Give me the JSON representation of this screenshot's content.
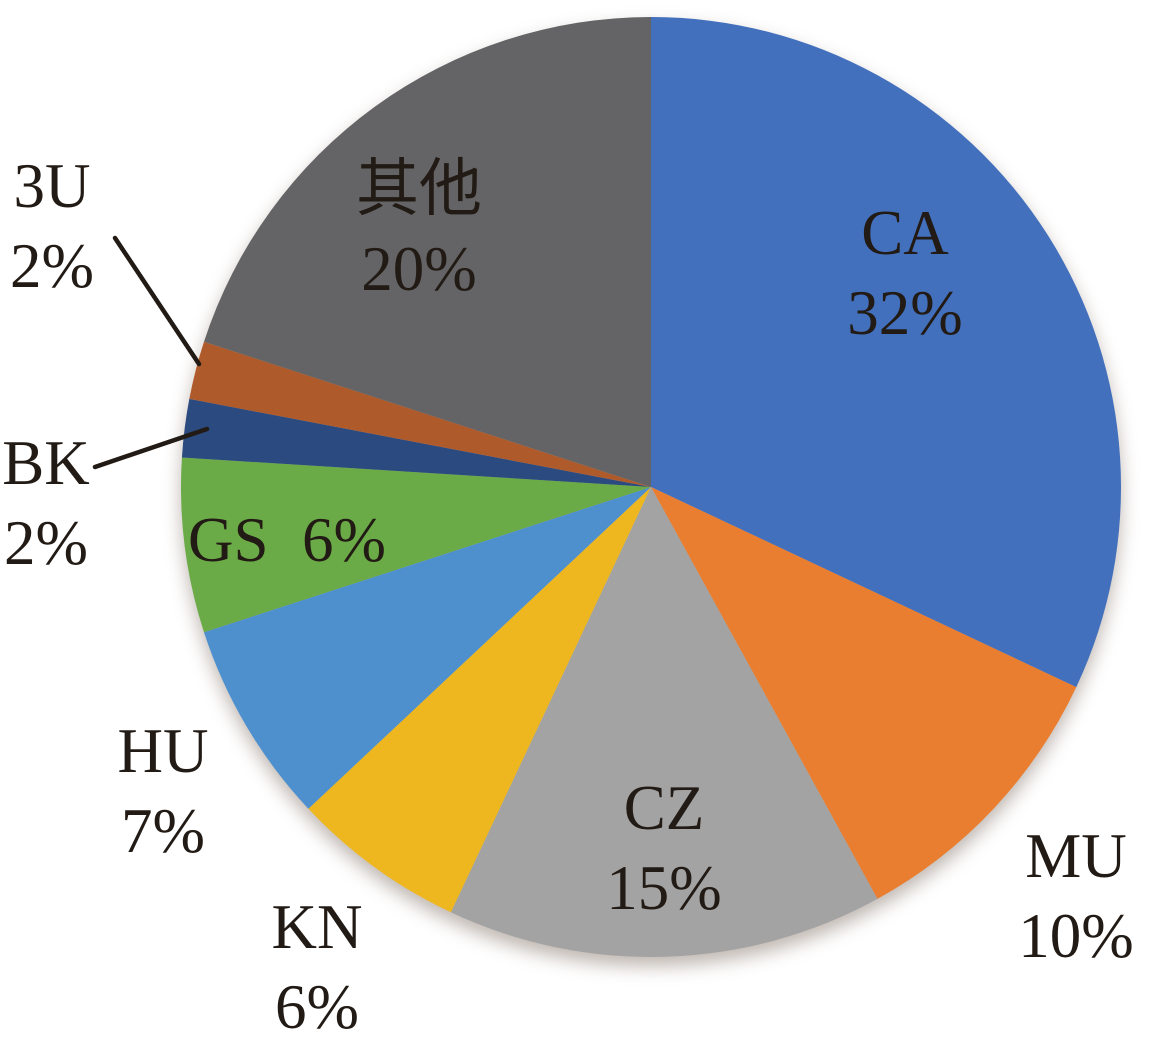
{
  "chart_data": {
    "type": "pie",
    "title": "",
    "start_angle_deg": 0,
    "direction": "clockwise",
    "legend_position": "none",
    "grid": false,
    "label_text_color": "#221a14",
    "background_color": "#ffffff",
    "pie_geometry_hint": "full circle, starts at 12 o'clock, clockwise",
    "slices": [
      {
        "key": "ca",
        "code": "CA",
        "percent": 32,
        "pct_label": "32%",
        "color": "#4370BD",
        "label_placement": "inside"
      },
      {
        "key": "mu",
        "code": "MU",
        "percent": 10,
        "pct_label": "10%",
        "color": "#E97E30",
        "label_placement": "outside"
      },
      {
        "key": "cz",
        "code": "CZ",
        "percent": 15,
        "pct_label": "15%",
        "color": "#A3A3A3",
        "label_placement": "inside"
      },
      {
        "key": "kn",
        "code": "KN",
        "percent": 6,
        "pct_label": "6%",
        "color": "#EEB71F",
        "label_placement": "outside"
      },
      {
        "key": "hu",
        "code": "HU",
        "percent": 7,
        "pct_label": "7%",
        "color": "#4E90CE",
        "label_placement": "outside"
      },
      {
        "key": "gs",
        "code": "GS",
        "percent": 6,
        "pct_label": "6%",
        "color": "#6BAB47",
        "label_placement": "inside"
      },
      {
        "key": "bk",
        "code": "BK",
        "percent": 2,
        "pct_label": "2%",
        "color": "#2A4A80",
        "label_placement": "outside-callout"
      },
      {
        "key": "3u",
        "code": "3U",
        "percent": 2,
        "pct_label": "2%",
        "color": "#AE5A2B",
        "label_placement": "outside-callout"
      },
      {
        "key": "qita",
        "code": "其他",
        "percent": 20,
        "pct_label": "20%",
        "color": "#646466",
        "label_placement": "inside"
      }
    ]
  }
}
